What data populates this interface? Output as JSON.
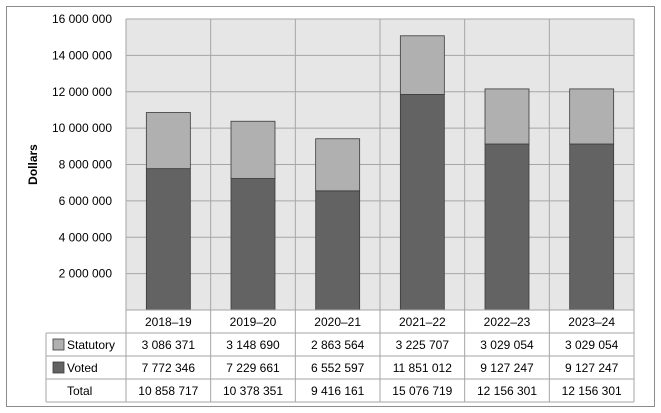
{
  "chart_data": {
    "type": "bar",
    "stacked": true,
    "ylabel": "Dollars",
    "xlabel": "",
    "title": "",
    "ylim": [
      0,
      16000000
    ],
    "y_ticks": [
      2000000,
      4000000,
      6000000,
      8000000,
      10000000,
      12000000,
      14000000,
      16000000
    ],
    "y_tick_labels": [
      "2 000 000",
      "4 000 000",
      "6 000 000",
      "8 000 000",
      "10 000 000",
      "12 000 000",
      "14 000 000",
      "16 000 000"
    ],
    "grid": true,
    "categories": [
      "2018–19",
      "2019–20",
      "2020–21",
      "2021–22",
      "2022–23",
      "2023–24"
    ],
    "series": [
      {
        "name": "Voted",
        "color": "#636363",
        "values": [
          7772346,
          7229661,
          6552597,
          11851012,
          9127247,
          9127247
        ],
        "labels": [
          "7 772 346",
          "7 229 661",
          "6 552 597",
          "11 851 012",
          "9 127 247",
          "9 127 247"
        ]
      },
      {
        "name": "Statutory",
        "color": "#b0b0b0",
        "values": [
          3086371,
          3148690,
          2863564,
          3225707,
          3029054,
          3029054
        ],
        "labels": [
          "3 086 371",
          "3 148 690",
          "2 863 564",
          "3 225 707",
          "3 029 054",
          "3 029 054"
        ]
      }
    ],
    "data_table": {
      "rows": [
        {
          "key": "Statutory",
          "series_index": 1
        },
        {
          "key": "Voted",
          "series_index": 0
        },
        {
          "key": "Total",
          "values": [
            "10 858 717",
            "10 378 351",
            "9 416 161",
            "15 076 719",
            "12 156 301",
            "12 156 301"
          ]
        }
      ]
    },
    "colors": {
      "plot_background": "#e6e6e6",
      "gridline": "#a6a6a6",
      "table_border": "#a6a6a6"
    }
  }
}
